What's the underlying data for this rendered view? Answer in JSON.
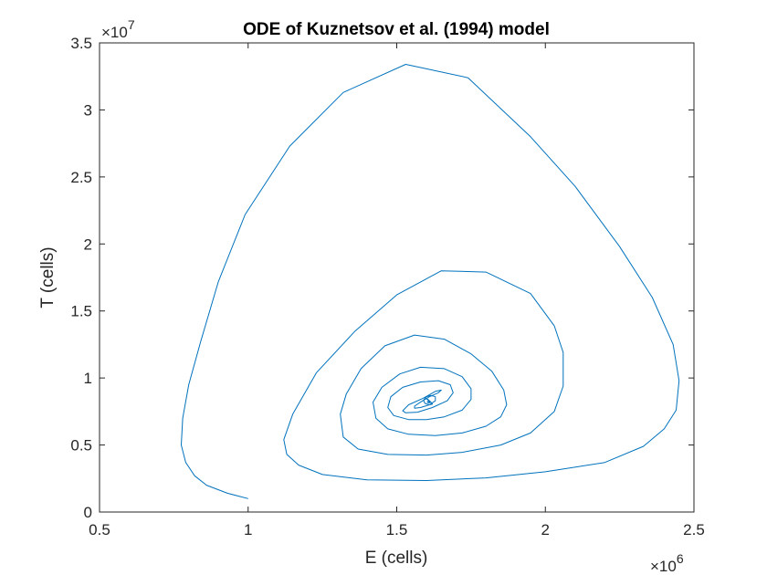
{
  "chart_data": {
    "type": "line",
    "title": "ODE of Kuznetsov et al. (1994) model",
    "xlabel": "E (cells)",
    "ylabel": "T (cells)",
    "x_exponent_label": {
      "base": "×10",
      "power": "6"
    },
    "y_exponent_label": {
      "base": "×10",
      "power": "7"
    },
    "xlim": [
      0.5,
      2.5
    ],
    "ylim": [
      0,
      3.5
    ],
    "x_scale_factor": 1000000,
    "y_scale_factor": 10000000,
    "x_ticks": [
      0.5,
      1,
      1.5,
      2,
      2.5
    ],
    "y_ticks": [
      0,
      0.5,
      1,
      1.5,
      2,
      2.5,
      3,
      3.5
    ],
    "x_tick_labels": [
      "0.5",
      "1",
      "1.5",
      "2",
      "2.5"
    ],
    "y_tick_labels": [
      "0",
      "0.5",
      "1",
      "1.5",
      "2",
      "2.5",
      "3",
      "3.5"
    ],
    "grid": false,
    "line_color": "#0072BD",
    "series": [
      {
        "x": [
          1.0,
          0.93,
          0.86,
          0.82,
          0.79,
          0.775,
          0.78,
          0.8,
          0.84,
          0.9,
          0.99,
          1.14,
          1.32,
          1.53,
          1.74,
          1.95,
          2.1,
          2.25,
          2.36,
          2.43,
          2.45,
          2.44,
          2.4,
          2.33,
          2.2,
          2.0,
          1.8,
          1.6,
          1.4,
          1.25,
          1.17,
          1.13,
          1.12,
          1.15,
          1.23,
          1.36,
          1.5,
          1.65,
          1.8,
          1.95,
          2.03,
          2.06,
          2.06,
          2.03,
          1.95,
          1.85,
          1.72,
          1.6,
          1.47,
          1.37,
          1.32,
          1.31,
          1.33,
          1.38,
          1.46,
          1.56,
          1.66,
          1.75,
          1.82,
          1.86,
          1.87,
          1.85,
          1.8,
          1.72,
          1.63,
          1.54,
          1.47,
          1.43,
          1.42,
          1.45,
          1.51,
          1.58,
          1.66,
          1.72,
          1.75,
          1.75,
          1.72,
          1.66,
          1.6,
          1.54,
          1.49,
          1.47,
          1.48,
          1.52,
          1.58,
          1.64,
          1.68,
          1.69,
          1.67,
          1.62,
          1.57,
          1.53,
          1.52,
          1.54,
          1.59,
          1.63,
          1.65,
          1.64,
          1.61,
          1.58,
          1.56,
          1.56,
          1.58,
          1.61,
          1.63,
          1.63,
          1.615,
          1.6,
          1.59,
          1.595,
          1.61,
          1.62,
          1.615,
          1.605,
          1.6,
          1.603,
          1.61,
          1.612,
          1.607,
          1.603,
          1.605,
          1.608
        ],
        "y": [
          0.1,
          0.14,
          0.2,
          0.27,
          0.37,
          0.5,
          0.7,
          0.95,
          1.27,
          1.72,
          2.22,
          2.73,
          3.13,
          3.34,
          3.24,
          2.8,
          2.43,
          1.98,
          1.6,
          1.25,
          0.98,
          0.76,
          0.62,
          0.49,
          0.37,
          0.3,
          0.255,
          0.235,
          0.24,
          0.28,
          0.35,
          0.43,
          0.54,
          0.73,
          1.04,
          1.35,
          1.62,
          1.8,
          1.79,
          1.63,
          1.39,
          1.19,
          0.94,
          0.75,
          0.59,
          0.5,
          0.445,
          0.425,
          0.43,
          0.47,
          0.56,
          0.73,
          0.88,
          1.07,
          1.24,
          1.32,
          1.29,
          1.18,
          1.05,
          0.91,
          0.8,
          0.71,
          0.64,
          0.59,
          0.57,
          0.58,
          0.62,
          0.7,
          0.82,
          0.93,
          1.03,
          1.08,
          1.07,
          1.01,
          0.92,
          0.84,
          0.76,
          0.71,
          0.69,
          0.69,
          0.72,
          0.78,
          0.86,
          0.93,
          0.97,
          0.98,
          0.95,
          0.89,
          0.83,
          0.78,
          0.745,
          0.74,
          0.755,
          0.8,
          0.85,
          0.9,
          0.91,
          0.89,
          0.86,
          0.82,
          0.79,
          0.775,
          0.78,
          0.8,
          0.83,
          0.86,
          0.87,
          0.86,
          0.835,
          0.81,
          0.8,
          0.805,
          0.82,
          0.84,
          0.845,
          0.84,
          0.825,
          0.815,
          0.815,
          0.82,
          0.825,
          0.82
        ]
      }
    ]
  }
}
